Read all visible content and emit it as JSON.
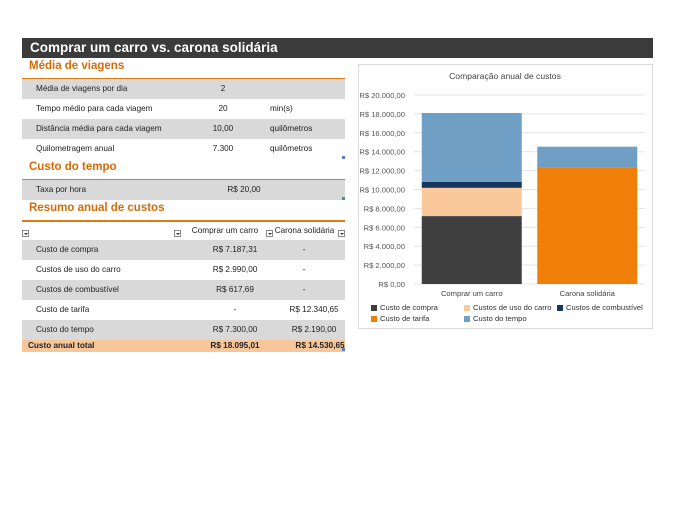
{
  "title": "Comprar um carro vs. carona solidária",
  "media_viagens": {
    "heading": "Média de viagens",
    "rows": [
      {
        "label": "Média de viagens por dia",
        "value": "2",
        "unit": ""
      },
      {
        "label": "Tempo médio para cada viagem",
        "value": "20",
        "unit": "min(s)"
      },
      {
        "label": "Distância média para cada viagem",
        "value": "10,00",
        "unit": "quilômetros"
      },
      {
        "label": "Quilometragem anual",
        "value": "7.300",
        "unit": "quilômetros"
      }
    ]
  },
  "custo_tempo": {
    "heading": "Custo do tempo",
    "rows": [
      {
        "label": "Taxa por hora",
        "value": "R$ 20,00"
      }
    ]
  },
  "resumo": {
    "heading": "Resumo anual de custos",
    "col1": "Comprar um carro",
    "col2": "Carona solidária",
    "rows": [
      {
        "label": "Custo de compra",
        "v1": "R$ 7.187,31",
        "v2": "-"
      },
      {
        "label": "Custos de uso do carro",
        "v1": "R$ 2.990,00",
        "v2": "-"
      },
      {
        "label": "Custos de combustível",
        "v1": "R$ 617,69",
        "v2": "-"
      },
      {
        "label": "Custo de tarifa",
        "v1": "-",
        "v2": "R$ 12.340,65"
      },
      {
        "label": "Custo do tempo",
        "v1": "R$ 7.300,00",
        "v2": "R$ 2.190,00"
      }
    ],
    "total": {
      "label": "Custo anual total",
      "v1": "R$ 18.095,01",
      "v2": "R$ 14.530,65"
    }
  },
  "colors": {
    "accent": "#d56b06",
    "title_bg": "#3b3b3b",
    "row_gray": "#d9d9d9",
    "total_bg": "#f7c79a"
  },
  "chart_data": {
    "type": "bar",
    "stacked": true,
    "title": "Comparação anual de custos",
    "categories": [
      "Comprar um carro",
      "Carona solidária"
    ],
    "ylim": [
      0,
      20000
    ],
    "yticks": [
      "R$ 0,00",
      "R$ 2.000,00",
      "R$ 4.000,00",
      "R$ 6.000,00",
      "R$ 8.000,00",
      "R$ 10.000,00",
      "R$ 12.000,00",
      "R$ 14.000,00",
      "R$ 16.000,00",
      "R$ 18.000,00",
      "R$ 20.000,00"
    ],
    "legend_position": "bottom",
    "series": [
      {
        "name": "Custo de compra",
        "color": "#3f3f3f",
        "values": [
          7187.31,
          0
        ]
      },
      {
        "name": "Custos de uso do carro",
        "color": "#f9c89b",
        "values": [
          2990.0,
          0
        ]
      },
      {
        "name": "Custos de combustível",
        "color": "#17375e",
        "values": [
          617.69,
          0
        ]
      },
      {
        "name": "Custo de tarifa",
        "color": "#f07f09",
        "values": [
          0,
          12340.65
        ]
      },
      {
        "name": "Custo do tempo",
        "color": "#6f9fc5",
        "values": [
          7300.0,
          2190.0
        ]
      }
    ]
  }
}
